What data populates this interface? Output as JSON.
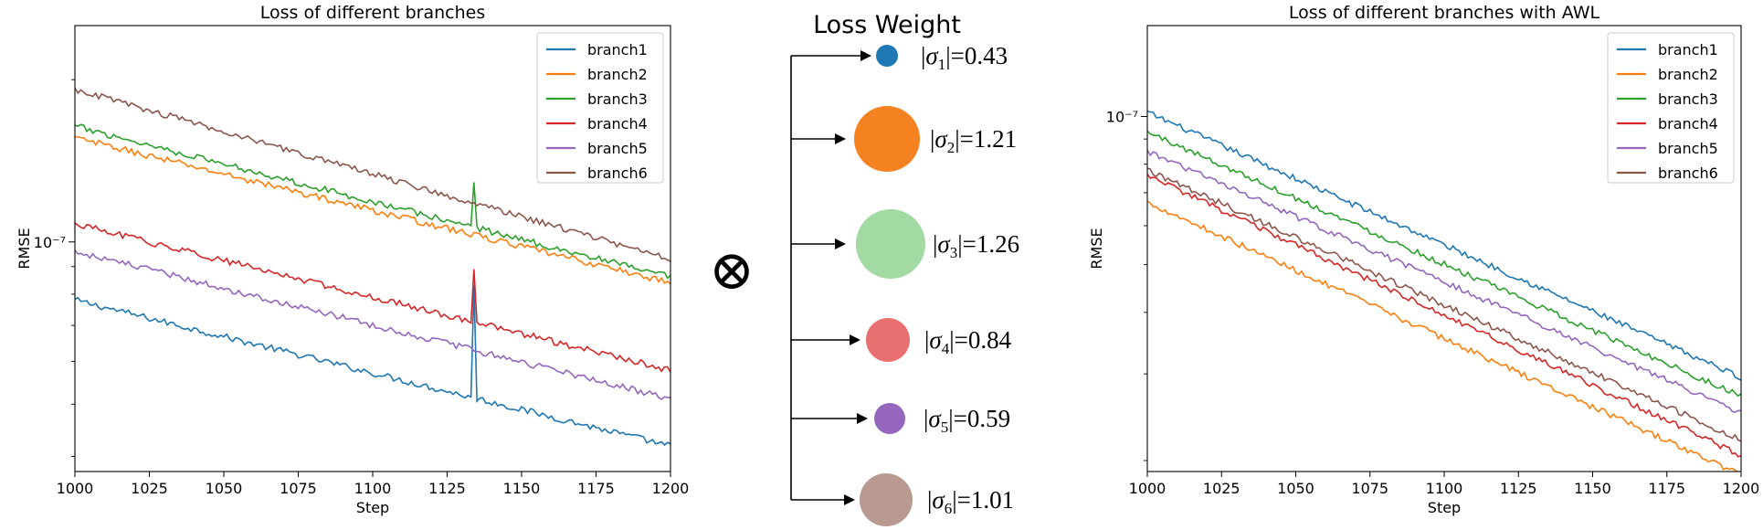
{
  "colors": {
    "branch1": "#1f77b4",
    "branch2": "#ff7f0e",
    "branch3": "#2ca02c",
    "branch4": "#d62728",
    "branch5": "#9467bd",
    "branch6": "#8c564b"
  },
  "operator_symbol": "⊗",
  "weights": {
    "title": "Loss Weight",
    "items": [
      {
        "sub": "1",
        "value": "0.43",
        "color": "#1f77b4",
        "opacity": 1.0
      },
      {
        "sub": "2",
        "value": "1.21",
        "color": "#f58220",
        "opacity": 1.0
      },
      {
        "sub": "3",
        "value": "1.26",
        "color": "#a3d9a3",
        "opacity": 1.0
      },
      {
        "sub": "4",
        "value": "0.84",
        "color": "#e87070",
        "opacity": 1.0
      },
      {
        "sub": "5",
        "value": "0.59",
        "color": "#9467bd",
        "opacity": 1.0
      },
      {
        "sub": "6",
        "value": "1.01",
        "color": "#b89a90",
        "opacity": 1.0
      }
    ]
  },
  "chart_data": [
    {
      "type": "line",
      "title": "Loss of different branches",
      "xlabel": "Step",
      "ylabel": "RMSE",
      "yscale": "log",
      "xlim": [
        1000,
        1200
      ],
      "ylim": [
        3.75e-08,
        2.52e-07
      ],
      "x_ticks": [
        1000,
        1025,
        1050,
        1075,
        1100,
        1125,
        1150,
        1175,
        1200
      ],
      "x_tick_labels": [
        "1000",
        "1025",
        "1050",
        "1075",
        "1100",
        "1125",
        "1150",
        "1175",
        "1200"
      ],
      "y_ticks": [
        1e-07
      ],
      "y_tick_labels": [
        "10⁻⁷"
      ],
      "legend": {
        "position": "top-right",
        "entries": [
          "branch1",
          "branch2",
          "branch3",
          "branch4",
          "branch5",
          "branch6"
        ]
      },
      "series": [
        {
          "name": "branch1",
          "color_key": "branch1",
          "start": 7.8e-08,
          "end": 4.18e-08,
          "spike": {
            "x": 1134,
            "value": 8.3e-08
          }
        },
        {
          "name": "branch2",
          "color_key": "branch2",
          "start": 1.56e-07,
          "end": 8.4e-08
        },
        {
          "name": "branch3",
          "color_key": "branch3",
          "start": 1.64e-07,
          "end": 8.6e-08,
          "spike": {
            "x": 1134,
            "value": 1.29e-07
          }
        },
        {
          "name": "branch4",
          "color_key": "branch4",
          "start": 1.08e-07,
          "end": 5.78e-08,
          "spike": {
            "x": 1134,
            "value": 8.9e-08
          }
        },
        {
          "name": "branch5",
          "color_key": "branch5",
          "start": 9.6e-08,
          "end": 5.12e-08
        },
        {
          "name": "branch6",
          "color_key": "branch6",
          "start": 1.92e-07,
          "end": 9.3e-08
        }
      ]
    },
    {
      "type": "line",
      "title": "Loss of different branches with AWL",
      "xlabel": "Step",
      "ylabel": "RMSE",
      "yscale": "log",
      "xlim": [
        1000,
        1200
      ],
      "ylim": [
        1.9e-08,
        1.53e-07
      ],
      "x_ticks": [
        1000,
        1025,
        1050,
        1075,
        1100,
        1125,
        1150,
        1175,
        1200
      ],
      "x_tick_labels": [
        "1000",
        "1025",
        "1050",
        "1075",
        "1100",
        "1125",
        "1150",
        "1175",
        "1200"
      ],
      "y_ticks": [
        1e-07
      ],
      "y_tick_labels": [
        "10⁻⁷"
      ],
      "legend": {
        "position": "top-right",
        "entries": [
          "branch1",
          "branch2",
          "branch3",
          "branch4",
          "branch5",
          "branch6"
        ]
      },
      "series": [
        {
          "name": "branch1",
          "color_key": "branch1",
          "start": 1.02e-07,
          "end": 2.95e-08
        },
        {
          "name": "branch2",
          "color_key": "branch2",
          "start": 6.7e-08,
          "end": 1.87e-08
        },
        {
          "name": "branch3",
          "color_key": "branch3",
          "start": 9.3e-08,
          "end": 2.7e-08
        },
        {
          "name": "branch4",
          "color_key": "branch4",
          "start": 7.6e-08,
          "end": 2.05e-08
        },
        {
          "name": "branch5",
          "color_key": "branch5",
          "start": 8.5e-08,
          "end": 2.5e-08
        },
        {
          "name": "branch6",
          "color_key": "branch6",
          "start": 7.8e-08,
          "end": 2.2e-08
        }
      ]
    }
  ]
}
